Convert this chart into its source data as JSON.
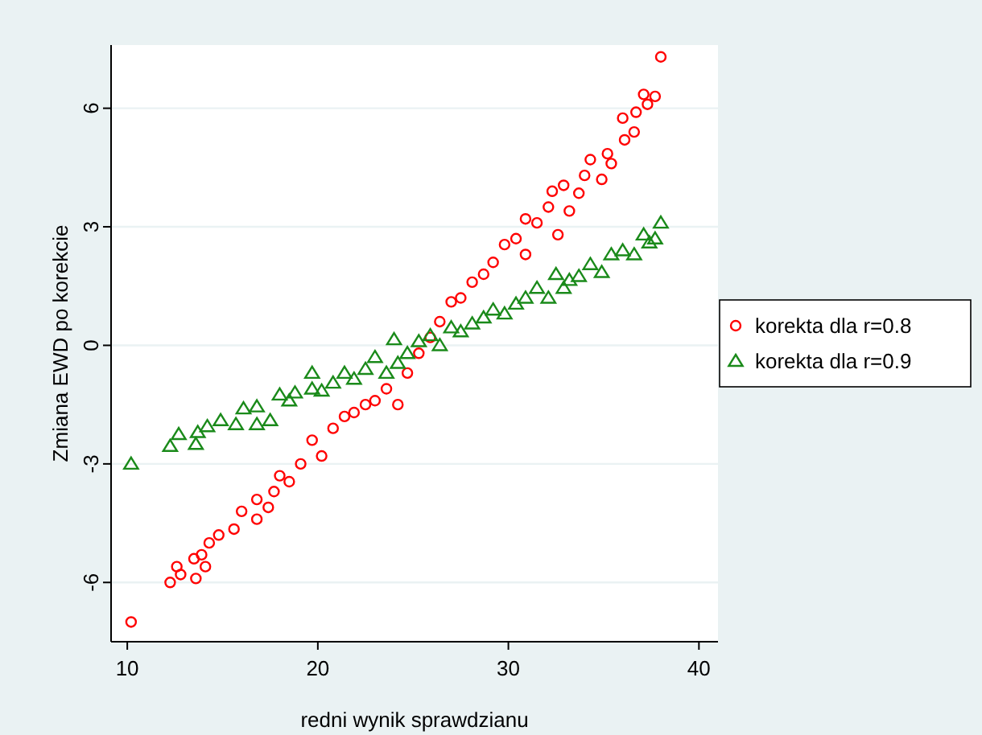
{
  "chart_data": {
    "type": "scatter",
    "xlabel": "redni wynik sprawdzianu",
    "ylabel": "Zmiana EWD po korekcie",
    "xlim": [
      9.15,
      41
    ],
    "xticks": [
      10,
      20,
      30,
      40
    ],
    "ylim": [
      -7.5,
      7.6
    ],
    "yticks": [
      -6,
      -3,
      0,
      3,
      6
    ],
    "grid": "y",
    "legend": "right",
    "series": [
      {
        "name": "korekta dla r=0.8",
        "color": "#ff0000",
        "marker": "circle",
        "x": [
          10.2,
          12.25,
          12.6,
          12.8,
          13.5,
          13.6,
          13.9,
          14.1,
          14.3,
          14.8,
          15.6,
          16.0,
          16.8,
          16.8,
          17.4,
          17.7,
          18.0,
          18.5,
          19.1,
          19.7,
          20.2,
          20.8,
          21.4,
          21.9,
          22.5,
          23.0,
          23.6,
          24.2,
          24.7,
          25.3,
          25.9,
          26.4,
          27.0,
          27.5,
          28.1,
          28.7,
          29.2,
          29.8,
          30.4,
          30.9,
          30.9,
          31.5,
          32.1,
          32.3,
          32.6,
          32.9,
          33.2,
          33.7,
          34.0,
          34.3,
          34.9,
          35.2,
          35.4,
          36.0,
          36.1,
          36.6,
          36.7,
          37.1,
          37.3,
          37.7,
          38.0
        ],
        "values": [
          -7.0,
          -6.0,
          -5.6,
          -5.8,
          -5.4,
          -5.9,
          -5.3,
          -5.6,
          -5.0,
          -4.8,
          -4.65,
          -4.2,
          -3.9,
          -4.4,
          -4.1,
          -3.7,
          -3.3,
          -3.45,
          -3.0,
          -2.4,
          -2.8,
          -2.1,
          -1.8,
          -1.7,
          -1.5,
          -1.4,
          -1.1,
          -1.5,
          -0.7,
          -0.2,
          0.2,
          0.6,
          1.1,
          1.2,
          1.6,
          1.8,
          2.1,
          2.55,
          2.7,
          3.2,
          2.3,
          3.1,
          3.5,
          3.9,
          2.8,
          4.05,
          3.4,
          3.85,
          4.3,
          4.7,
          4.2,
          4.85,
          4.6,
          5.75,
          5.2,
          5.4,
          5.9,
          6.35,
          6.1,
          6.3,
          7.3
        ]
      },
      {
        "name": "korekta dla r=0.9",
        "color": "#1a8a1a",
        "marker": "triangle",
        "x": [
          10.2,
          12.25,
          12.7,
          13.6,
          13.7,
          14.2,
          14.9,
          15.7,
          16.1,
          16.8,
          16.8,
          17.5,
          18.0,
          18.5,
          18.8,
          19.7,
          19.7,
          20.2,
          20.8,
          21.4,
          21.9,
          22.5,
          23.0,
          23.6,
          24.0,
          24.2,
          24.7,
          25.3,
          25.9,
          26.4,
          27.0,
          27.5,
          28.1,
          28.7,
          29.2,
          29.8,
          30.4,
          30.9,
          31.5,
          32.1,
          32.5,
          32.9,
          33.2,
          33.7,
          34.3,
          34.9,
          35.4,
          36.0,
          36.6,
          37.1,
          37.4,
          37.7,
          38.0
        ],
        "values": [
          -3.0,
          -2.55,
          -2.25,
          -2.5,
          -2.2,
          -2.05,
          -1.9,
          -2.0,
          -1.6,
          -2.0,
          -1.55,
          -1.9,
          -1.25,
          -1.4,
          -1.2,
          -0.7,
          -1.1,
          -1.15,
          -0.95,
          -0.7,
          -0.85,
          -0.6,
          -0.3,
          -0.7,
          0.15,
          -0.45,
          -0.2,
          0.1,
          0.25,
          0.0,
          0.45,
          0.35,
          0.55,
          0.7,
          0.9,
          0.8,
          1.05,
          1.2,
          1.45,
          1.2,
          1.8,
          1.45,
          1.65,
          1.75,
          2.05,
          1.85,
          2.3,
          2.4,
          2.3,
          2.8,
          2.6,
          2.7,
          3.1
        ]
      }
    ]
  }
}
